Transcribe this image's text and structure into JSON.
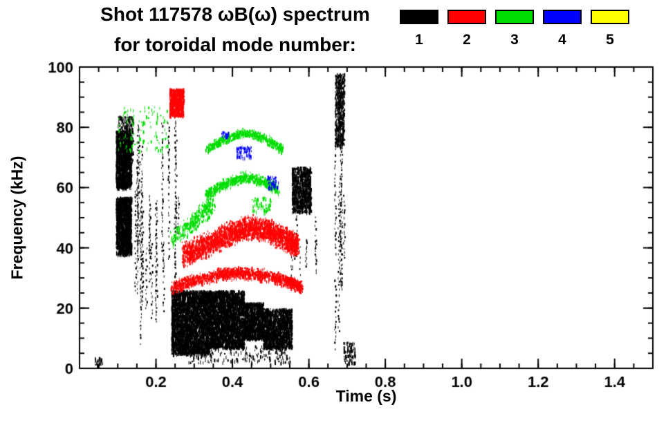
{
  "header": {
    "title": "Shot 117578 ωB(ω) spectrum",
    "subtitle": "for toroidal mode number:"
  },
  "legend": {
    "items": [
      {
        "label": "1",
        "color": "#000000"
      },
      {
        "label": "2",
        "color": "#ff0000"
      },
      {
        "label": "3",
        "color": "#00dd00"
      },
      {
        "label": "4",
        "color": "#0000ff"
      },
      {
        "label": "5",
        "color": "#ffff00"
      }
    ]
  },
  "chart_data": {
    "type": "scatter",
    "title": "Shot 117578 ωB(ω) spectrum",
    "subtitle": "for toroidal mode number:",
    "xlabel": "Time (s)",
    "ylabel": "Frequency (kHz)",
    "xlim": [
      0,
      1.5
    ],
    "ylim": [
      0,
      100
    ],
    "x_major_ticks": [
      0.2,
      0.4,
      0.6,
      0.8,
      1.0,
      1.2,
      1.4
    ],
    "x_tick_labels": [
      "0.2",
      "0.4",
      "0.6",
      "0.8",
      "1.0",
      "1.2",
      "1.4"
    ],
    "x_minor_step": 0.05,
    "y_major_ticks": [
      0,
      20,
      40,
      60,
      80,
      100
    ],
    "y_tick_labels": [
      "0",
      "20",
      "40",
      "60",
      "80",
      "100"
    ],
    "y_minor_step": 5,
    "grid": false,
    "legend_position": "top-right-above-plot",
    "axis_color": "#000000",
    "modes": [
      {
        "mode": 1,
        "color": "#000000"
      },
      {
        "mode": 2,
        "color": "#ff0000"
      },
      {
        "mode": 3,
        "color": "#00dd00"
      },
      {
        "mode": 4,
        "color": "#0000ff"
      },
      {
        "mode": 5,
        "color": "#ffff00"
      }
    ],
    "clusters": [
      {
        "mode": 1,
        "type": "blob",
        "t": [
          0.095,
          0.135
        ],
        "f": [
          60,
          79
        ],
        "count": 1500
      },
      {
        "mode": 1,
        "type": "blob",
        "t": [
          0.1,
          0.14
        ],
        "f": [
          68,
          84
        ],
        "count": 300
      },
      {
        "mode": 1,
        "type": "blob",
        "t": [
          0.095,
          0.135
        ],
        "f": [
          38,
          57
        ],
        "count": 1600
      },
      {
        "mode": 1,
        "type": "streaks",
        "t": [
          0.145,
          0.255
        ],
        "f": [
          6,
          82
        ],
        "n": 20
      },
      {
        "mode": 1,
        "type": "streaks",
        "t": [
          0.24,
          0.26
        ],
        "f": [
          30,
          88
        ],
        "n": 3
      },
      {
        "mode": 1,
        "type": "blob",
        "t": [
          0.24,
          0.34
        ],
        "f": [
          5,
          26
        ],
        "count": 3200
      },
      {
        "mode": 1,
        "type": "blob",
        "t": [
          0.34,
          0.43
        ],
        "f": [
          7,
          26
        ],
        "count": 2800
      },
      {
        "mode": 1,
        "type": "blob",
        "t": [
          0.43,
          0.48
        ],
        "f": [
          10,
          22
        ],
        "count": 1100
      },
      {
        "mode": 1,
        "type": "blob",
        "t": [
          0.48,
          0.555
        ],
        "f": [
          7,
          20
        ],
        "count": 1500
      },
      {
        "mode": 1,
        "type": "blob",
        "t": [
          0.28,
          0.55
        ],
        "f": [
          2,
          8
        ],
        "count": 200
      },
      {
        "mode": 1,
        "type": "blob",
        "t": [
          0.555,
          0.605
        ],
        "f": [
          52,
          67
        ],
        "count": 900
      },
      {
        "mode": 1,
        "type": "streaks",
        "t": [
          0.55,
          0.62
        ],
        "f": [
          25,
          52
        ],
        "n": 9
      },
      {
        "mode": 1,
        "type": "streaks",
        "t": [
          0.665,
          0.695
        ],
        "f": [
          3,
          97
        ],
        "n": 7
      },
      {
        "mode": 1,
        "type": "blob",
        "t": [
          0.668,
          0.692
        ],
        "f": [
          74,
          98
        ],
        "count": 500
      },
      {
        "mode": 1,
        "type": "blob",
        "t": [
          0.69,
          0.72
        ],
        "f": [
          2,
          9
        ],
        "count": 80
      },
      {
        "mode": 1,
        "type": "blob",
        "t": [
          0.04,
          0.06
        ],
        "f": [
          1,
          4
        ],
        "count": 25
      },
      {
        "mode": 2,
        "type": "blob",
        "t": [
          0.235,
          0.272
        ],
        "f": [
          84,
          93
        ],
        "count": 600
      },
      {
        "mode": 2,
        "type": "band",
        "pts": [
          [
            0.27,
            38
          ],
          [
            0.33,
            41
          ],
          [
            0.39,
            45
          ],
          [
            0.44,
            47
          ],
          [
            0.49,
            46
          ],
          [
            0.54,
            43
          ],
          [
            0.57,
            41
          ]
        ],
        "spread": 4.5,
        "count": 2600
      },
      {
        "mode": 2,
        "type": "band",
        "pts": [
          [
            0.24,
            27
          ],
          [
            0.3,
            29.5
          ],
          [
            0.37,
            31.5
          ],
          [
            0.43,
            32
          ],
          [
            0.49,
            31
          ],
          [
            0.55,
            29
          ],
          [
            0.58,
            27
          ]
        ],
        "spread": 2.3,
        "count": 1500
      },
      {
        "mode": 3,
        "type": "band",
        "pts": [
          [
            0.33,
            73
          ],
          [
            0.38,
            76.5
          ],
          [
            0.43,
            78.5
          ],
          [
            0.48,
            77
          ],
          [
            0.53,
            73
          ]
        ],
        "spread": 1.7,
        "count": 600
      },
      {
        "mode": 3,
        "type": "band",
        "pts": [
          [
            0.33,
            58
          ],
          [
            0.38,
            61.5
          ],
          [
            0.43,
            64
          ],
          [
            0.48,
            62.5
          ],
          [
            0.52,
            59.5
          ]
        ],
        "spread": 2.0,
        "count": 650
      },
      {
        "mode": 3,
        "type": "band",
        "pts": [
          [
            0.24,
            43
          ],
          [
            0.28,
            47
          ],
          [
            0.32,
            52
          ],
          [
            0.35,
            55
          ]
        ],
        "spread": 4,
        "count": 350
      },
      {
        "mode": 3,
        "type": "blob",
        "t": [
          0.1,
          0.23
        ],
        "f": [
          72,
          87
        ],
        "count": 110
      },
      {
        "mode": 3,
        "type": "blob",
        "t": [
          0.45,
          0.5
        ],
        "f": [
          52,
          57
        ],
        "count": 70
      },
      {
        "mode": 4,
        "type": "blob",
        "t": [
          0.41,
          0.45
        ],
        "f": [
          70,
          74
        ],
        "count": 70
      },
      {
        "mode": 4,
        "type": "blob",
        "t": [
          0.49,
          0.52
        ],
        "f": [
          60,
          64
        ],
        "count": 45
      },
      {
        "mode": 4,
        "type": "blob",
        "t": [
          0.37,
          0.39
        ],
        "f": [
          77,
          79
        ],
        "count": 18
      }
    ]
  }
}
